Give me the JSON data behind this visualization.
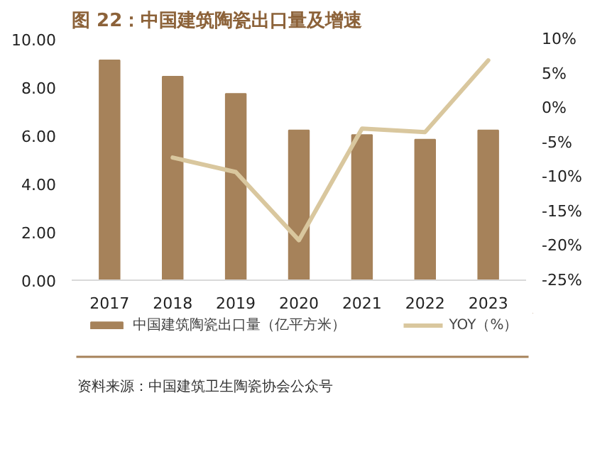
{
  "chart_data": {
    "type": "bar",
    "title": "图 22：中国建筑陶瓷出口量及增速",
    "categories": [
      "2017",
      "2018",
      "2019",
      "2020",
      "2021",
      "2022",
      "2023"
    ],
    "series": [
      {
        "name": "中国建筑陶瓷出口量（亿平方米）",
        "color": "#a6825a",
        "values": [
          9.12,
          8.44,
          7.73,
          6.21,
          6.02,
          5.83,
          6.21
        ]
      },
      {
        "name": "YOY（%）",
        "type": "line",
        "axis": "y2",
        "color": "#d9c79e",
        "values": [
          null,
          -7.2,
          -9.3,
          -19.2,
          -3.0,
          -3.5,
          6.9
        ]
      }
    ],
    "ylim": [
      0,
      10
    ],
    "yticks": [
      {
        "value": 0,
        "label": "0.00"
      },
      {
        "value": 2,
        "label": "2.00"
      },
      {
        "value": 4,
        "label": "4.00"
      },
      {
        "value": 6,
        "label": "6.00"
      },
      {
        "value": 8,
        "label": "8.00"
      },
      {
        "value": 10,
        "label": "10.00"
      }
    ],
    "y2lim": [
      -25,
      10
    ],
    "y2ticks": [
      {
        "value": -25,
        "label": "-25%"
      },
      {
        "value": -20,
        "label": "-20%"
      },
      {
        "value": -15,
        "label": "-15%"
      },
      {
        "value": -10,
        "label": "-10%"
      },
      {
        "value": -5,
        "label": "-5%"
      },
      {
        "value": 0,
        "label": "0%"
      },
      {
        "value": 5,
        "label": "5%"
      },
      {
        "value": 10,
        "label": "10%"
      }
    ],
    "grid": false,
    "legend": "bottom",
    "annotations": [
      "资料来源：中国建筑卫生陶瓷协会公众号"
    ]
  }
}
